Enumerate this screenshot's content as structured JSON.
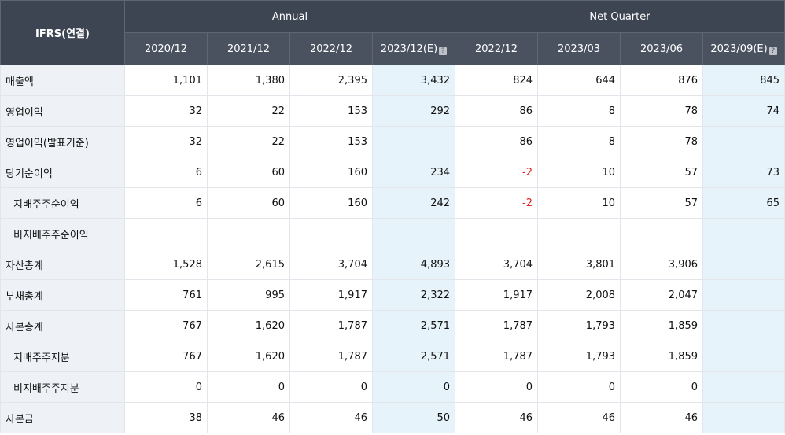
{
  "header": {
    "corner": "IFRS(연결)",
    "groups": [
      "Annual",
      "Net Quarter"
    ],
    "periods": [
      {
        "label": "2020/12",
        "est": false
      },
      {
        "label": "2021/12",
        "est": false
      },
      {
        "label": "2022/12",
        "est": false
      },
      {
        "label": "2023/12(E)",
        "est": true
      },
      {
        "label": "2022/12",
        "est": false
      },
      {
        "label": "2023/03",
        "est": false
      },
      {
        "label": "2023/06",
        "est": false
      },
      {
        "label": "2023/09(E)",
        "est": true
      }
    ],
    "est_icon_glyph": "?"
  },
  "rows": [
    {
      "label": "매출액",
      "sub": false,
      "values": [
        "1,101",
        "1,380",
        "2,395",
        "3,432",
        "824",
        "644",
        "876",
        "845"
      ]
    },
    {
      "label": "영업이익",
      "sub": false,
      "values": [
        "32",
        "22",
        "153",
        "292",
        "86",
        "8",
        "78",
        "74"
      ]
    },
    {
      "label": "영업이익(발표기준)",
      "sub": false,
      "values": [
        "32",
        "22",
        "153",
        "",
        "86",
        "8",
        "78",
        ""
      ]
    },
    {
      "label": "당기순이익",
      "sub": false,
      "values": [
        "6",
        "60",
        "160",
        "234",
        "-2",
        "10",
        "57",
        "73"
      ]
    },
    {
      "label": "지배주주순이익",
      "sub": true,
      "values": [
        "6",
        "60",
        "160",
        "242",
        "-2",
        "10",
        "57",
        "65"
      ]
    },
    {
      "label": "비지배주주순이익",
      "sub": true,
      "values": [
        "",
        "",
        "",
        "",
        "",
        "",
        "",
        ""
      ]
    },
    {
      "label": "자산총계",
      "sub": false,
      "values": [
        "1,528",
        "2,615",
        "3,704",
        "4,893",
        "3,704",
        "3,801",
        "3,906",
        ""
      ]
    },
    {
      "label": "부채총계",
      "sub": false,
      "values": [
        "761",
        "995",
        "1,917",
        "2,322",
        "1,917",
        "2,008",
        "2,047",
        ""
      ]
    },
    {
      "label": "자본총계",
      "sub": false,
      "values": [
        "767",
        "1,620",
        "1,787",
        "2,571",
        "1,787",
        "1,793",
        "1,859",
        ""
      ]
    },
    {
      "label": "지배주주지분",
      "sub": true,
      "values": [
        "767",
        "1,620",
        "1,787",
        "2,571",
        "1,787",
        "1,793",
        "1,859",
        ""
      ]
    },
    {
      "label": "비지배주주지분",
      "sub": true,
      "values": [
        "0",
        "0",
        "0",
        "0",
        "0",
        "0",
        "0",
        ""
      ]
    },
    {
      "label": "자본금",
      "sub": false,
      "values": [
        "38",
        "46",
        "46",
        "50",
        "46",
        "46",
        "46",
        ""
      ]
    }
  ],
  "colors": {
    "header_bg": "#3e4552",
    "label_bg": "#eef2f6",
    "estimate_bg": "#e6f3fa",
    "negative": "#e0201b"
  }
}
